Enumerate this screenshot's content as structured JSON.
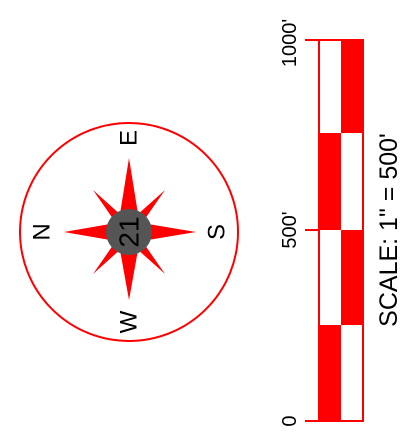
{
  "colors": {
    "accent": "#ff0000",
    "background": "#ffffff",
    "hub": "#555555",
    "text": "#000000"
  },
  "compass": {
    "icon": "compass-rose-icon",
    "labels": {
      "north": "N",
      "south": "S",
      "east": "E",
      "west": "W"
    },
    "center_number": "21",
    "orientation_note": "rotated 90 degrees counter-clockwise"
  },
  "scale_bar": {
    "icon": "checkered-scale-bar-icon",
    "tick_labels": [
      "0",
      "500'",
      "1000'"
    ],
    "segments": 4,
    "scale_text": "SCALE: 1\" = 500'"
  }
}
